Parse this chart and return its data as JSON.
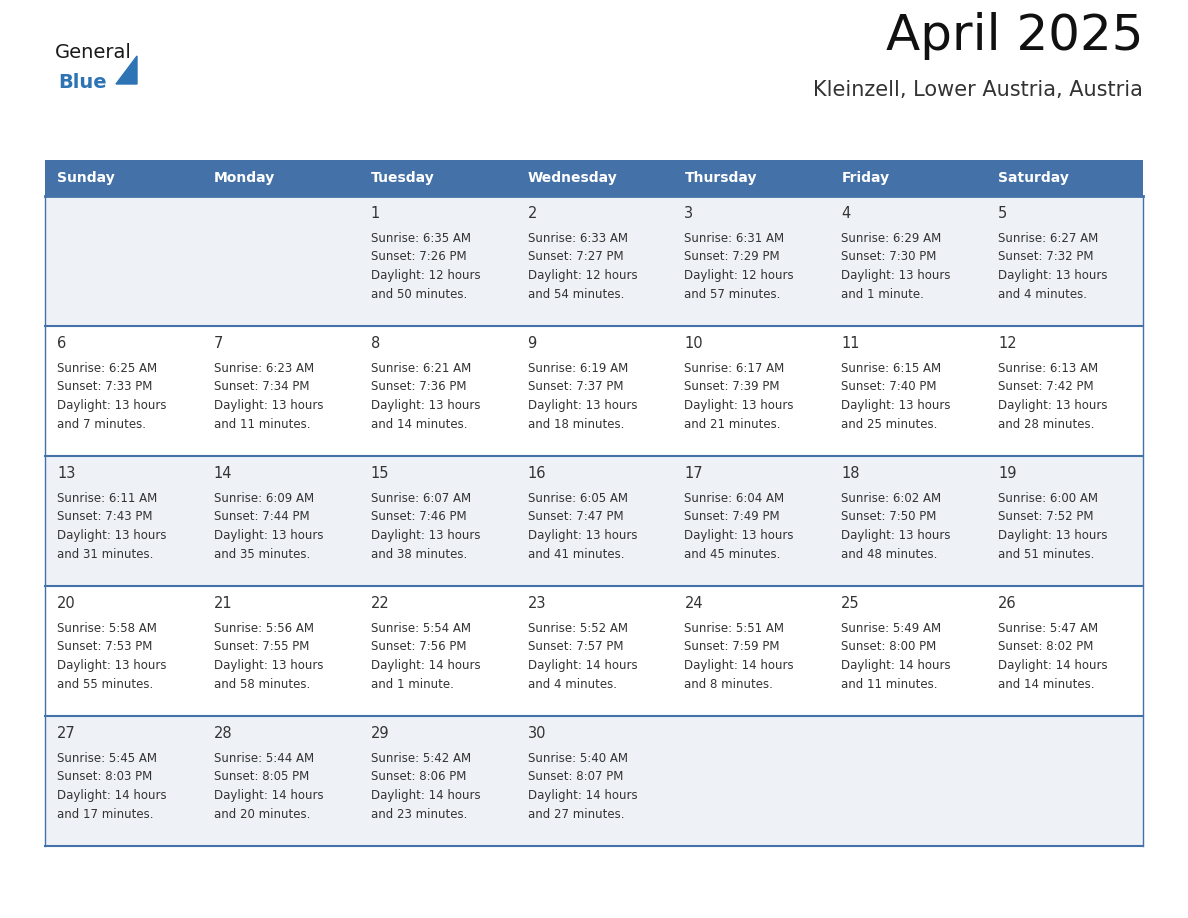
{
  "title": "April 2025",
  "subtitle": "Kleinzell, Lower Austria, Austria",
  "days_of_week": [
    "Sunday",
    "Monday",
    "Tuesday",
    "Wednesday",
    "Thursday",
    "Friday",
    "Saturday"
  ],
  "header_bg": "#4472a8",
  "header_text": "#ffffff",
  "cell_bg_light": "#eef2f7",
  "cell_bg_white": "#ffffff",
  "row_line_color": "#4472a8",
  "text_color": "#333333",
  "date_color": "#333333",
  "logo_general_color": "#1a1a1a",
  "logo_blue_color": "#2e74b5",
  "calendar_data": [
    [
      null,
      null,
      {
        "day": 1,
        "sunrise": "6:35 AM",
        "sunset": "7:26 PM",
        "daylight": "12 hours",
        "daylight2": "and 50 minutes."
      },
      {
        "day": 2,
        "sunrise": "6:33 AM",
        "sunset": "7:27 PM",
        "daylight": "12 hours",
        "daylight2": "and 54 minutes."
      },
      {
        "day": 3,
        "sunrise": "6:31 AM",
        "sunset": "7:29 PM",
        "daylight": "12 hours",
        "daylight2": "and 57 minutes."
      },
      {
        "day": 4,
        "sunrise": "6:29 AM",
        "sunset": "7:30 PM",
        "daylight": "13 hours",
        "daylight2": "and 1 minute."
      },
      {
        "day": 5,
        "sunrise": "6:27 AM",
        "sunset": "7:32 PM",
        "daylight": "13 hours",
        "daylight2": "and 4 minutes."
      }
    ],
    [
      {
        "day": 6,
        "sunrise": "6:25 AM",
        "sunset": "7:33 PM",
        "daylight": "13 hours",
        "daylight2": "and 7 minutes."
      },
      {
        "day": 7,
        "sunrise": "6:23 AM",
        "sunset": "7:34 PM",
        "daylight": "13 hours",
        "daylight2": "and 11 minutes."
      },
      {
        "day": 8,
        "sunrise": "6:21 AM",
        "sunset": "7:36 PM",
        "daylight": "13 hours",
        "daylight2": "and 14 minutes."
      },
      {
        "day": 9,
        "sunrise": "6:19 AM",
        "sunset": "7:37 PM",
        "daylight": "13 hours",
        "daylight2": "and 18 minutes."
      },
      {
        "day": 10,
        "sunrise": "6:17 AM",
        "sunset": "7:39 PM",
        "daylight": "13 hours",
        "daylight2": "and 21 minutes."
      },
      {
        "day": 11,
        "sunrise": "6:15 AM",
        "sunset": "7:40 PM",
        "daylight": "13 hours",
        "daylight2": "and 25 minutes."
      },
      {
        "day": 12,
        "sunrise": "6:13 AM",
        "sunset": "7:42 PM",
        "daylight": "13 hours",
        "daylight2": "and 28 minutes."
      }
    ],
    [
      {
        "day": 13,
        "sunrise": "6:11 AM",
        "sunset": "7:43 PM",
        "daylight": "13 hours",
        "daylight2": "and 31 minutes."
      },
      {
        "day": 14,
        "sunrise": "6:09 AM",
        "sunset": "7:44 PM",
        "daylight": "13 hours",
        "daylight2": "and 35 minutes."
      },
      {
        "day": 15,
        "sunrise": "6:07 AM",
        "sunset": "7:46 PM",
        "daylight": "13 hours",
        "daylight2": "and 38 minutes."
      },
      {
        "day": 16,
        "sunrise": "6:05 AM",
        "sunset": "7:47 PM",
        "daylight": "13 hours",
        "daylight2": "and 41 minutes."
      },
      {
        "day": 17,
        "sunrise": "6:04 AM",
        "sunset": "7:49 PM",
        "daylight": "13 hours",
        "daylight2": "and 45 minutes."
      },
      {
        "day": 18,
        "sunrise": "6:02 AM",
        "sunset": "7:50 PM",
        "daylight": "13 hours",
        "daylight2": "and 48 minutes."
      },
      {
        "day": 19,
        "sunrise": "6:00 AM",
        "sunset": "7:52 PM",
        "daylight": "13 hours",
        "daylight2": "and 51 minutes."
      }
    ],
    [
      {
        "day": 20,
        "sunrise": "5:58 AM",
        "sunset": "7:53 PM",
        "daylight": "13 hours",
        "daylight2": "and 55 minutes."
      },
      {
        "day": 21,
        "sunrise": "5:56 AM",
        "sunset": "7:55 PM",
        "daylight": "13 hours",
        "daylight2": "and 58 minutes."
      },
      {
        "day": 22,
        "sunrise": "5:54 AM",
        "sunset": "7:56 PM",
        "daylight": "14 hours",
        "daylight2": "and 1 minute."
      },
      {
        "day": 23,
        "sunrise": "5:52 AM",
        "sunset": "7:57 PM",
        "daylight": "14 hours",
        "daylight2": "and 4 minutes."
      },
      {
        "day": 24,
        "sunrise": "5:51 AM",
        "sunset": "7:59 PM",
        "daylight": "14 hours",
        "daylight2": "and 8 minutes."
      },
      {
        "day": 25,
        "sunrise": "5:49 AM",
        "sunset": "8:00 PM",
        "daylight": "14 hours",
        "daylight2": "and 11 minutes."
      },
      {
        "day": 26,
        "sunrise": "5:47 AM",
        "sunset": "8:02 PM",
        "daylight": "14 hours",
        "daylight2": "and 14 minutes."
      }
    ],
    [
      {
        "day": 27,
        "sunrise": "5:45 AM",
        "sunset": "8:03 PM",
        "daylight": "14 hours",
        "daylight2": "and 17 minutes."
      },
      {
        "day": 28,
        "sunrise": "5:44 AM",
        "sunset": "8:05 PM",
        "daylight": "14 hours",
        "daylight2": "and 20 minutes."
      },
      {
        "day": 29,
        "sunrise": "5:42 AM",
        "sunset": "8:06 PM",
        "daylight": "14 hours",
        "daylight2": "and 23 minutes."
      },
      {
        "day": 30,
        "sunrise": "5:40 AM",
        "sunset": "8:07 PM",
        "daylight": "14 hours",
        "daylight2": "and 27 minutes."
      },
      null,
      null,
      null
    ]
  ]
}
